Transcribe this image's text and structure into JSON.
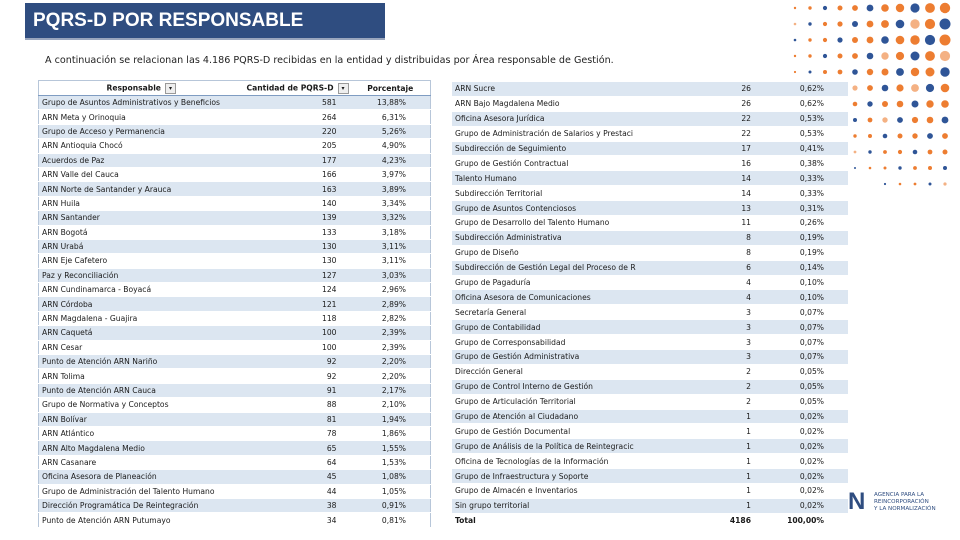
{
  "header": {
    "title": "PQRS-D POR RESPONSABLE",
    "subtitle": "A continuación se relacionan las 4.186 PQRS-D recibidas en la entidad y distribuidas por Área responsable de Gestión."
  },
  "left_table": {
    "columns": [
      "Responsable",
      "Cantidad de PQRS-D",
      "Porcentaje"
    ],
    "rows": [
      [
        "Grupo de Asuntos Administrativos y Beneficios",
        581,
        "13,88%"
      ],
      [
        "ARN Meta y Orinoquia",
        264,
        "6,31%"
      ],
      [
        "Grupo de Acceso y Permanencia",
        220,
        "5,26%"
      ],
      [
        "ARN Antioquia Chocó",
        205,
        "4,90%"
      ],
      [
        "Acuerdos de Paz",
        177,
        "4,23%"
      ],
      [
        "ARN Valle del Cauca",
        166,
        "3,97%"
      ],
      [
        "ARN Norte de Santander y Arauca",
        163,
        "3,89%"
      ],
      [
        "ARN Huila",
        140,
        "3,34%"
      ],
      [
        "ARN Santander",
        139,
        "3,32%"
      ],
      [
        "ARN Bogotá",
        133,
        "3,18%"
      ],
      [
        "ARN Urabá",
        130,
        "3,11%"
      ],
      [
        "ARN Eje Cafetero",
        130,
        "3,11%"
      ],
      [
        "Paz y Reconciliación",
        127,
        "3,03%"
      ],
      [
        "ARN Cundinamarca - Boyacá",
        124,
        "2,96%"
      ],
      [
        "ARN Córdoba",
        121,
        "2,89%"
      ],
      [
        "ARN Magdalena - Guajira",
        118,
        "2,82%"
      ],
      [
        "ARN Caquetá",
        100,
        "2,39%"
      ],
      [
        "ARN Cesar",
        100,
        "2,39%"
      ],
      [
        "Punto de Atención ARN Nariño",
        92,
        "2,20%"
      ],
      [
        "ARN Tolima",
        92,
        "2,20%"
      ],
      [
        "Punto de Atención ARN Cauca",
        91,
        "2,17%"
      ],
      [
        "Grupo de Normativa y Conceptos",
        88,
        "2,10%"
      ],
      [
        "ARN Bolívar",
        81,
        "1,94%"
      ],
      [
        "ARN Atlántico",
        78,
        "1,86%"
      ],
      [
        "ARN Alto Magdalena Medio",
        65,
        "1,55%"
      ],
      [
        "ARN Casanare",
        64,
        "1,53%"
      ],
      [
        "Oficina Asesora de Planeación",
        45,
        "1,08%"
      ],
      [
        "Grupo de Administración del Talento Humano",
        44,
        "1,05%"
      ],
      [
        "Dirección Programática De Reintegración",
        38,
        "0,91%"
      ],
      [
        "Punto de Atención ARN Putumayo",
        34,
        "0,81%"
      ]
    ]
  },
  "right_table": {
    "rows": [
      [
        "ARN Sucre",
        26,
        "0,62%"
      ],
      [
        "ARN Bajo Magdalena Medio",
        26,
        "0,62%"
      ],
      [
        "Oficina Asesora Jurídica",
        22,
        "0,53%"
      ],
      [
        "Grupo de Administración de Salarios y Prestaci",
        22,
        "0,53%"
      ],
      [
        "Subdirección de Seguimiento",
        17,
        "0,41%"
      ],
      [
        "Grupo de Gestión Contractual",
        16,
        "0,38%"
      ],
      [
        "Talento Humano",
        14,
        "0,33%"
      ],
      [
        "Subdirección Territorial",
        14,
        "0,33%"
      ],
      [
        "Grupo de Asuntos Contenciosos",
        13,
        "0,31%"
      ],
      [
        "Grupo de Desarrollo del Talento Humano",
        11,
        "0,26%"
      ],
      [
        "Subdirección Administrativa",
        8,
        "0,19%"
      ],
      [
        "Grupo de Diseño",
        8,
        "0,19%"
      ],
      [
        "Subdirección de Gestión Legal del Proceso de R",
        6,
        "0,14%"
      ],
      [
        "Grupo de Pagaduría",
        4,
        "0,10%"
      ],
      [
        "Oficina Asesora de Comunicaciones",
        4,
        "0,10%"
      ],
      [
        "Secretaría General",
        3,
        "0,07%"
      ],
      [
        "Grupo de Contabilidad",
        3,
        "0,07%"
      ],
      [
        "Grupo de Corresponsabilidad",
        3,
        "0,07%"
      ],
      [
        "Grupo de Gestión Administrativa",
        3,
        "0,07%"
      ],
      [
        "Dirección General",
        2,
        "0,05%"
      ],
      [
        "Grupo de Control Interno de Gestión",
        2,
        "0,05%"
      ],
      [
        "Grupo de Articulación Territorial",
        2,
        "0,05%"
      ],
      [
        "Grupo de Atención al Ciudadano",
        1,
        "0,02%"
      ],
      [
        "Grupo de Gestión Documental",
        1,
        "0,02%"
      ],
      [
        "Grupo de Análisis de la Política de Reintegracic",
        1,
        "0,02%"
      ],
      [
        "Oficina de Tecnologías de la Información",
        1,
        "0,02%"
      ],
      [
        "Grupo de Infraestructura y Soporte",
        1,
        "0,02%"
      ],
      [
        "Grupo de Almacén e Inventarios",
        1,
        "0,02%"
      ],
      [
        "Sin grupo territorial",
        1,
        "0,02%"
      ]
    ],
    "total": [
      "Total",
      4186,
      "100,00%"
    ]
  },
  "logo": {
    "mark": "N",
    "lines": [
      "AGENCIA PARA LA",
      "REINCORPORACIÓN",
      "Y LA NORMALIZACIÓN"
    ]
  }
}
